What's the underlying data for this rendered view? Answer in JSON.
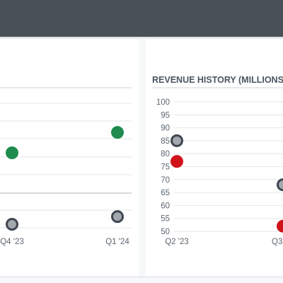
{
  "colors": {
    "topbar": "#4a5058",
    "grid": "#e3e6ea",
    "green_series": "#1e8c4e",
    "red_series": "#d0121b",
    "gray_series_fill": "#a3a8ae",
    "gray_series_stroke": "#3f4650"
  },
  "right_card": {
    "title": "REVENUE HISTORY (MILLIONS)"
  },
  "chart_data": [
    {
      "type": "scatter",
      "title": "",
      "x_categories_visible": [
        "Q4 '23",
        "Q1 '24"
      ],
      "series": [
        {
          "color_role": "green",
          "values": [
            {
              "x": "Q4 '23",
              "y": 82
            },
            {
              "x": "Q1 '24",
              "y": 90
            }
          ]
        },
        {
          "color_role": "gray",
          "values": [
            {
              "x": "Q4 '23",
              "y": 54
            },
            {
              "x": "Q1 '24",
              "y": 57
            }
          ]
        }
      ],
      "grid": true
    },
    {
      "type": "scatter",
      "title": "REVENUE HISTORY (MILLIONS)",
      "x_categories_visible": [
        "Q2 '23",
        "Q3"
      ],
      "y_ticks": [
        100,
        95,
        90,
        85,
        80,
        75,
        70,
        65,
        60,
        55,
        50
      ],
      "ylim": [
        50,
        100
      ],
      "series": [
        {
          "color_role": "gray",
          "values": [
            {
              "x": "Q2 '23",
              "y": 85
            },
            {
              "x": "Q3",
              "y": 68
            }
          ]
        },
        {
          "color_role": "red",
          "values": [
            {
              "x": "Q2 '23",
              "y": 77
            },
            {
              "x": "Q3",
              "y": 52
            }
          ]
        }
      ],
      "grid": true
    }
  ]
}
